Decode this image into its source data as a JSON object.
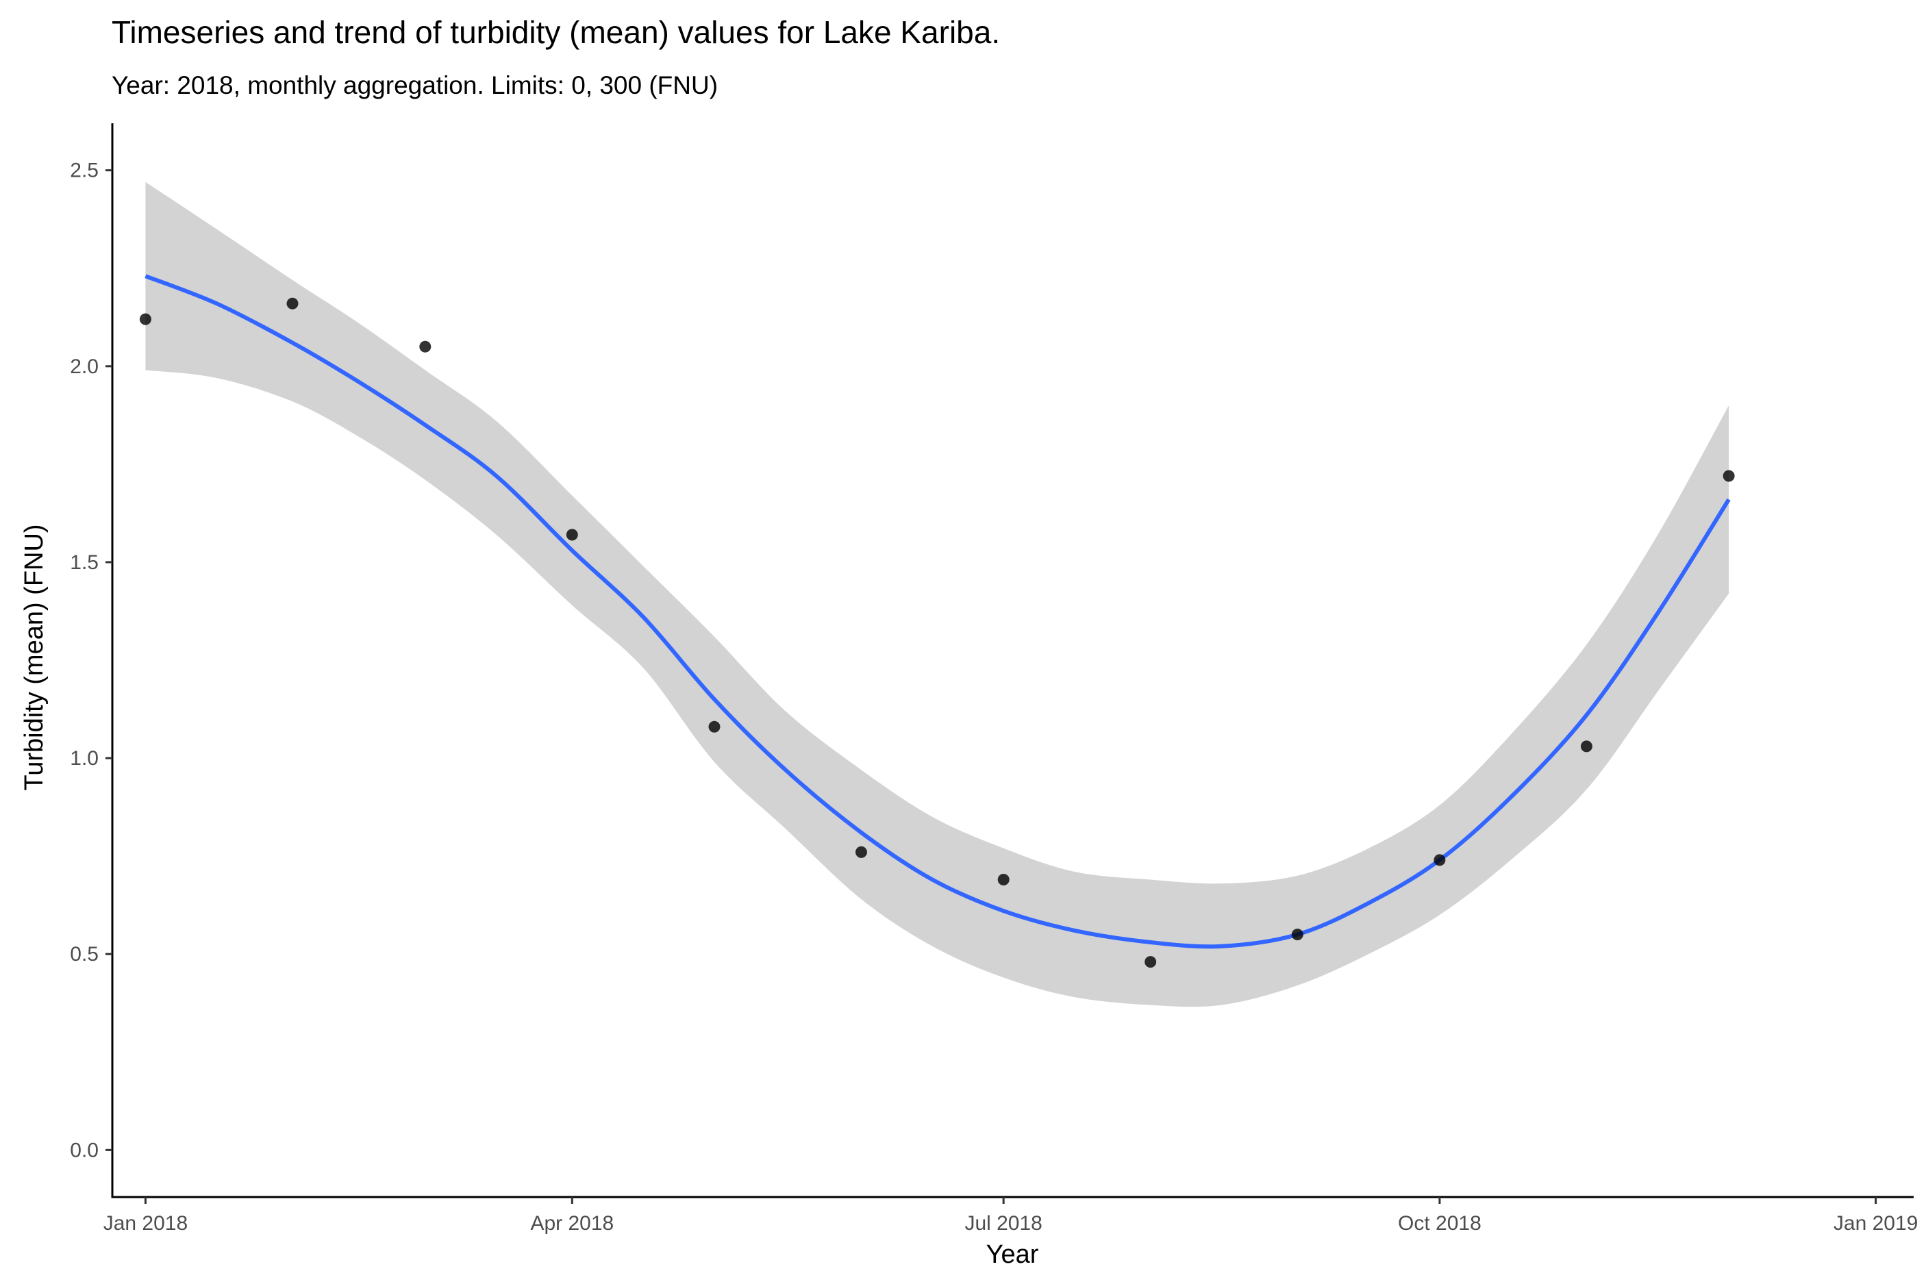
{
  "chart_data": {
    "type": "scatter",
    "title": "Timeseries and trend of turbidity (mean) values for Lake Kariba.",
    "subtitle": "Year: 2018, monthly aggregation. Limits: 0, 300 (FNU)",
    "xlabel": "Year",
    "ylabel": "Turbidity (mean) (FNU)",
    "xlim": [
      "2017-12-25",
      "2019-01-09"
    ],
    "ylim": [
      -0.12,
      2.62
    ],
    "x_ticks": [
      {
        "date": "2018-01-01",
        "label": "Jan 2018"
      },
      {
        "date": "2018-04-01",
        "label": "Apr 2018"
      },
      {
        "date": "2018-07-01",
        "label": "Jul 2018"
      },
      {
        "date": "2018-10-01",
        "label": "Oct 2018"
      },
      {
        "date": "2019-01-01",
        "label": "Jan 2019"
      }
    ],
    "y_ticks": [
      {
        "value": 0.0,
        "label": "0.0"
      },
      {
        "value": 0.5,
        "label": "0.5"
      },
      {
        "value": 1.0,
        "label": "1.0"
      },
      {
        "value": 1.5,
        "label": "1.5"
      },
      {
        "value": 2.0,
        "label": "2.0"
      },
      {
        "value": 2.5,
        "label": "2.5"
      }
    ],
    "grid": false,
    "points": {
      "color": "#000000",
      "x": [
        "2018-01-01",
        "2018-02-01",
        "2018-03-01",
        "2018-04-01",
        "2018-05-01",
        "2018-06-01",
        "2018-07-01",
        "2018-08-01",
        "2018-09-01",
        "2018-10-01",
        "2018-11-01",
        "2018-12-01"
      ],
      "y": [
        2.12,
        2.16,
        2.05,
        1.57,
        1.08,
        0.76,
        0.69,
        0.48,
        0.55,
        0.74,
        1.03,
        1.72
      ]
    },
    "trend": {
      "color": "#3366FF",
      "band_color": "#D3D3D3",
      "x": [
        "2018-01-01",
        "2018-01-16",
        "2018-02-01",
        "2018-02-15",
        "2018-03-01",
        "2018-03-16",
        "2018-04-01",
        "2018-04-16",
        "2018-05-01",
        "2018-05-16",
        "2018-06-01",
        "2018-06-16",
        "2018-07-01",
        "2018-07-16",
        "2018-08-01",
        "2018-08-16",
        "2018-09-01",
        "2018-09-16",
        "2018-10-01",
        "2018-10-16",
        "2018-11-01",
        "2018-11-16",
        "2018-12-01"
      ],
      "y": [
        2.23,
        2.16,
        2.06,
        1.96,
        1.85,
        1.72,
        1.53,
        1.36,
        1.15,
        0.97,
        0.81,
        0.69,
        0.61,
        0.56,
        0.53,
        0.52,
        0.55,
        0.63,
        0.74,
        0.9,
        1.11,
        1.37,
        1.66
      ],
      "lower": [
        1.99,
        1.97,
        1.91,
        1.82,
        1.71,
        1.57,
        1.39,
        1.23,
        0.99,
        0.82,
        0.64,
        0.52,
        0.44,
        0.39,
        0.37,
        0.37,
        0.42,
        0.5,
        0.6,
        0.74,
        0.92,
        1.17,
        1.42
      ],
      "upper": [
        2.47,
        2.35,
        2.22,
        2.11,
        1.99,
        1.86,
        1.67,
        1.49,
        1.31,
        1.12,
        0.97,
        0.85,
        0.77,
        0.71,
        0.69,
        0.68,
        0.7,
        0.77,
        0.88,
        1.06,
        1.29,
        1.57,
        1.9
      ]
    }
  }
}
